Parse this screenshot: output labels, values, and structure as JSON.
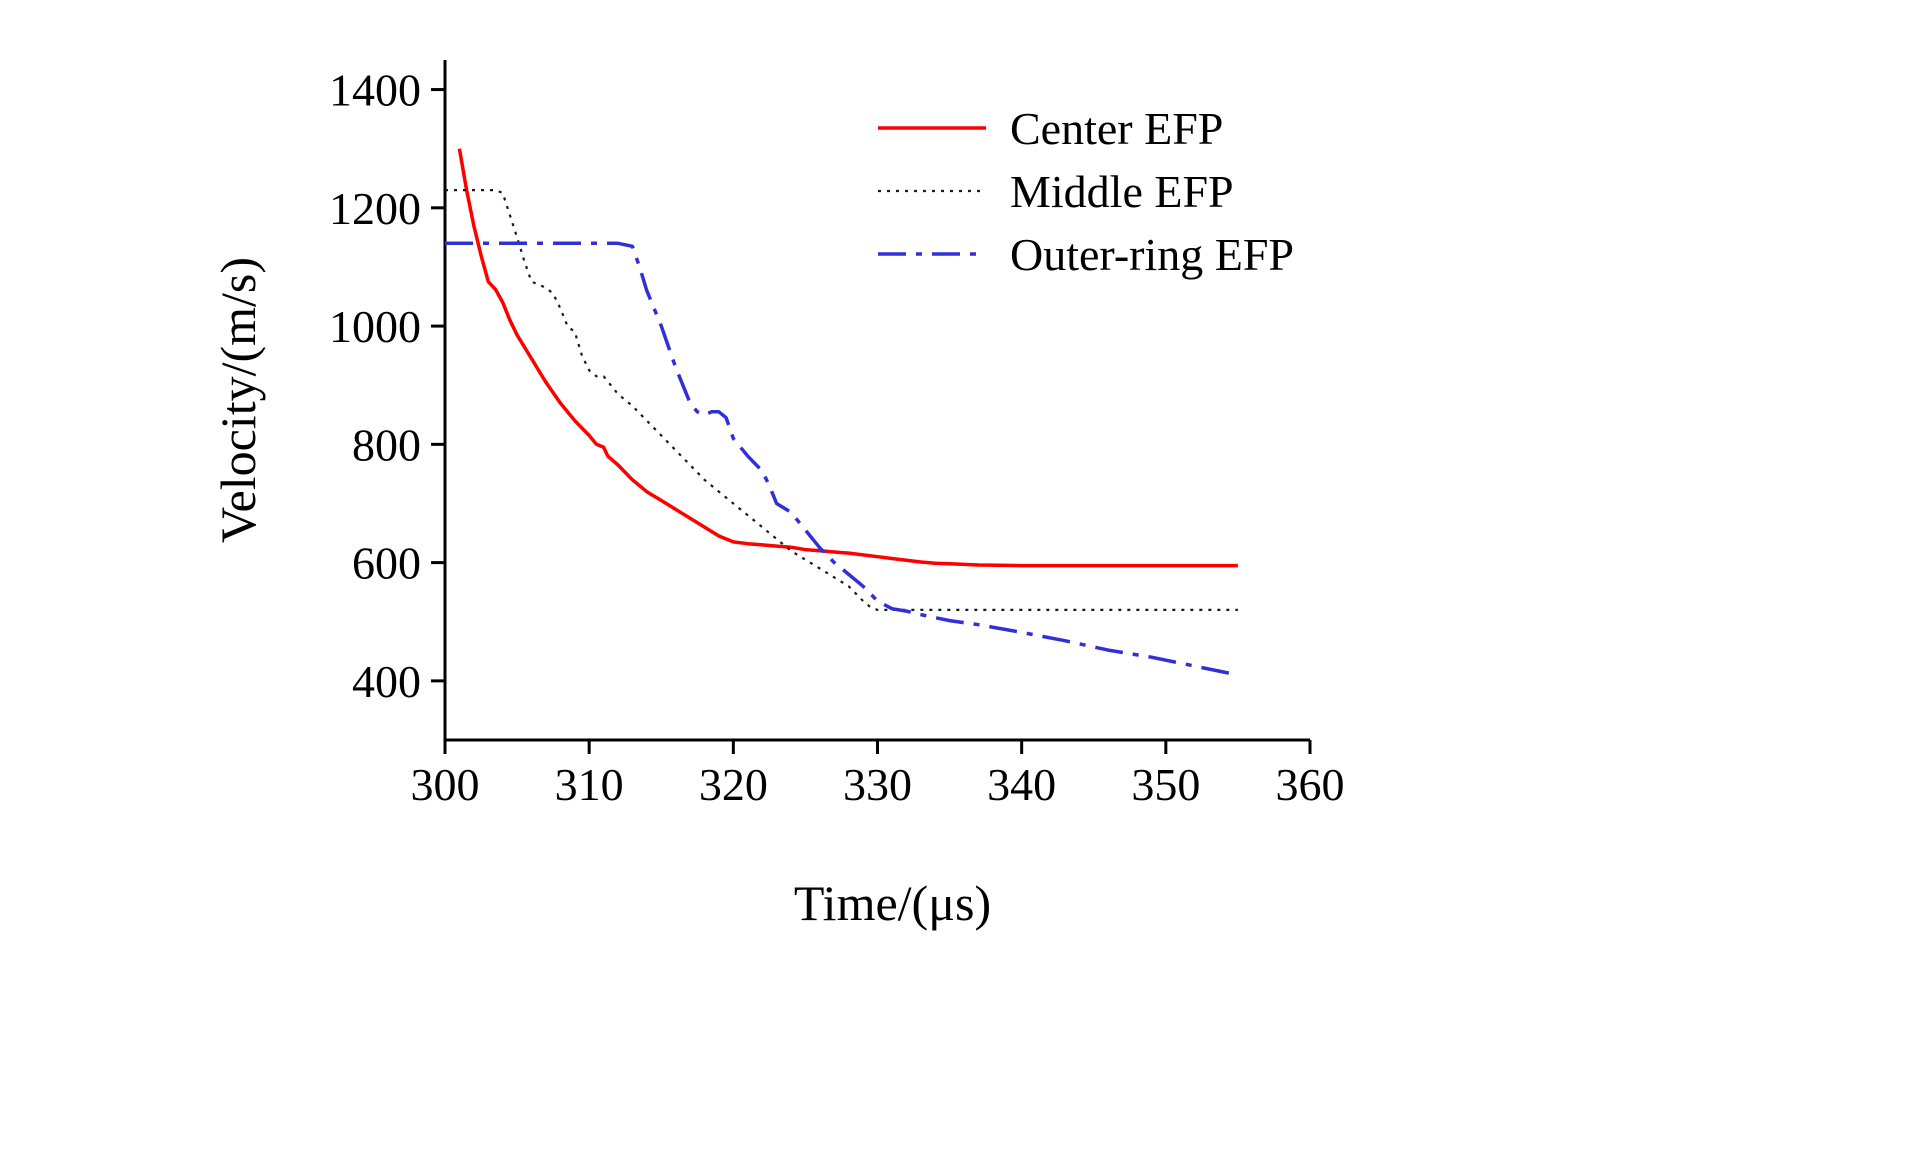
{
  "chart_data": {
    "type": "line",
    "title": "",
    "xlabel": "Time/(μs)",
    "ylabel": "Velocity/(m/s)",
    "xlim": [
      300,
      360
    ],
    "ylim": [
      300,
      1450
    ],
    "xticks": [
      300,
      310,
      320,
      330,
      340,
      350,
      360
    ],
    "yticks": [
      400,
      600,
      800,
      1000,
      1200,
      1400
    ],
    "grid": false,
    "legend_position": "top-right-inside",
    "axis_color": "#000000",
    "series": [
      {
        "name": "Center EFP",
        "color": "#ff0000",
        "style": "solid",
        "width": 3.5,
        "points": [
          [
            301,
            1300
          ],
          [
            301.5,
            1230
          ],
          [
            302,
            1170
          ],
          [
            302.5,
            1120
          ],
          [
            303,
            1075
          ],
          [
            303.5,
            1062
          ],
          [
            304,
            1040
          ],
          [
            304.5,
            1010
          ],
          [
            305,
            985
          ],
          [
            305.5,
            965
          ],
          [
            306,
            945
          ],
          [
            307,
            905
          ],
          [
            308,
            870
          ],
          [
            309,
            840
          ],
          [
            310,
            815
          ],
          [
            310.5,
            800
          ],
          [
            311,
            795
          ],
          [
            311.3,
            780
          ],
          [
            312,
            765
          ],
          [
            313,
            740
          ],
          [
            314,
            720
          ],
          [
            315,
            705
          ],
          [
            316,
            690
          ],
          [
            317,
            675
          ],
          [
            318,
            660
          ],
          [
            319,
            645
          ],
          [
            320,
            635
          ],
          [
            321,
            632
          ],
          [
            322,
            630
          ],
          [
            323,
            628
          ],
          [
            324,
            626
          ],
          [
            325,
            622
          ],
          [
            326,
            620
          ],
          [
            327,
            618
          ],
          [
            328,
            616
          ],
          [
            329,
            613
          ],
          [
            330,
            610
          ],
          [
            331,
            607
          ],
          [
            332,
            604
          ],
          [
            333,
            601
          ],
          [
            334,
            599
          ],
          [
            335,
            598
          ],
          [
            336,
            597
          ],
          [
            337,
            596
          ],
          [
            340,
            595
          ],
          [
            345,
            595
          ],
          [
            350,
            595
          ],
          [
            355,
            595
          ]
        ]
      },
      {
        "name": "Middle EFP",
        "color": "#1a1a1a",
        "style": "dotted",
        "width": 2.2,
        "points": [
          [
            300,
            1230
          ],
          [
            303.5,
            1230
          ],
          [
            304,
            1225
          ],
          [
            305,
            1150
          ],
          [
            305.5,
            1110
          ],
          [
            306,
            1075
          ],
          [
            307,
            1065
          ],
          [
            307.5,
            1055
          ],
          [
            308,
            1030
          ],
          [
            308.5,
            1000
          ],
          [
            309,
            990
          ],
          [
            309.5,
            950
          ],
          [
            310,
            925
          ],
          [
            310.5,
            915
          ],
          [
            311,
            915
          ],
          [
            311.5,
            900
          ],
          [
            312,
            885
          ],
          [
            313,
            865
          ],
          [
            314,
            840
          ],
          [
            315,
            815
          ],
          [
            316,
            790
          ],
          [
            317,
            765
          ],
          [
            318,
            740
          ],
          [
            319,
            720
          ],
          [
            320,
            700
          ],
          [
            321,
            680
          ],
          [
            322,
            660
          ],
          [
            323,
            640
          ],
          [
            324,
            620
          ],
          [
            325,
            605
          ],
          [
            326,
            590
          ],
          [
            327,
            575
          ],
          [
            328,
            560
          ],
          [
            329,
            535
          ],
          [
            329.5,
            525
          ],
          [
            330,
            520
          ],
          [
            335,
            520
          ],
          [
            340,
            520
          ],
          [
            345,
            520
          ],
          [
            350,
            520
          ],
          [
            355,
            520
          ]
        ]
      },
      {
        "name": "Outer-ring EFP",
        "color": "#3030d8",
        "style": "dashdot",
        "width": 3.5,
        "points": [
          [
            300,
            1140
          ],
          [
            312,
            1140
          ],
          [
            313,
            1135
          ],
          [
            313.5,
            1100
          ],
          [
            314,
            1060
          ],
          [
            315,
            1000
          ],
          [
            316,
            930
          ],
          [
            317,
            870
          ],
          [
            317.5,
            855
          ],
          [
            318,
            850
          ],
          [
            318.5,
            855
          ],
          [
            319,
            855
          ],
          [
            319.5,
            845
          ],
          [
            320,
            810
          ],
          [
            321,
            780
          ],
          [
            322,
            755
          ],
          [
            322.5,
            730
          ],
          [
            323,
            700
          ],
          [
            324,
            685
          ],
          [
            325,
            655
          ],
          [
            326,
            625
          ],
          [
            327,
            600
          ],
          [
            328,
            580
          ],
          [
            329,
            560
          ],
          [
            330,
            535
          ],
          [
            331,
            522
          ],
          [
            332,
            518
          ],
          [
            333,
            512
          ],
          [
            335,
            502
          ],
          [
            337,
            495
          ],
          [
            340,
            482
          ],
          [
            343,
            468
          ],
          [
            346,
            452
          ],
          [
            349,
            440
          ],
          [
            352,
            425
          ],
          [
            355,
            410
          ]
        ]
      }
    ]
  }
}
